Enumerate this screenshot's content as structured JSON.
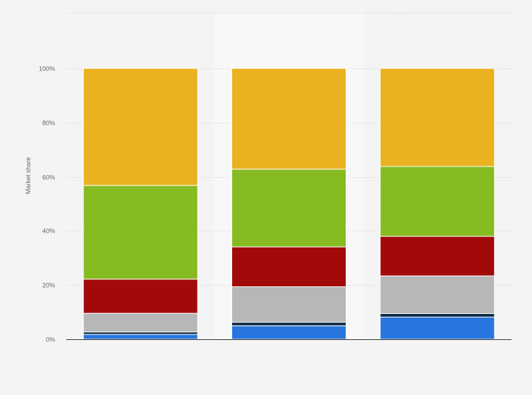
{
  "chart_data": {
    "type": "bar",
    "stacked": true,
    "title": "",
    "xlabel": "",
    "ylabel": "Market share",
    "ylim": [
      0,
      100
    ],
    "yticks": [
      "0%",
      "20%",
      "40%",
      "60%",
      "80%",
      "100%"
    ],
    "grid": true,
    "categories": [
      "",
      "",
      ""
    ],
    "highlighted_category_index": 1,
    "series": [
      {
        "color": "#2876dd",
        "values": [
          1.8,
          5.0,
          8.2
        ]
      },
      {
        "color": "#0f2b46",
        "values": [
          0.9,
          1.3,
          1.3
        ]
      },
      {
        "color": "#b7b7b7",
        "values": [
          6.9,
          13.1,
          13.9
        ]
      },
      {
        "color": "#a20a0a",
        "values": [
          12.6,
          14.7,
          14.6
        ]
      },
      {
        "color": "#86bb22",
        "values": [
          34.6,
          28.7,
          25.8
        ]
      },
      {
        "color": "#eab220",
        "values": [
          43.2,
          37.2,
          36.2
        ]
      }
    ]
  }
}
